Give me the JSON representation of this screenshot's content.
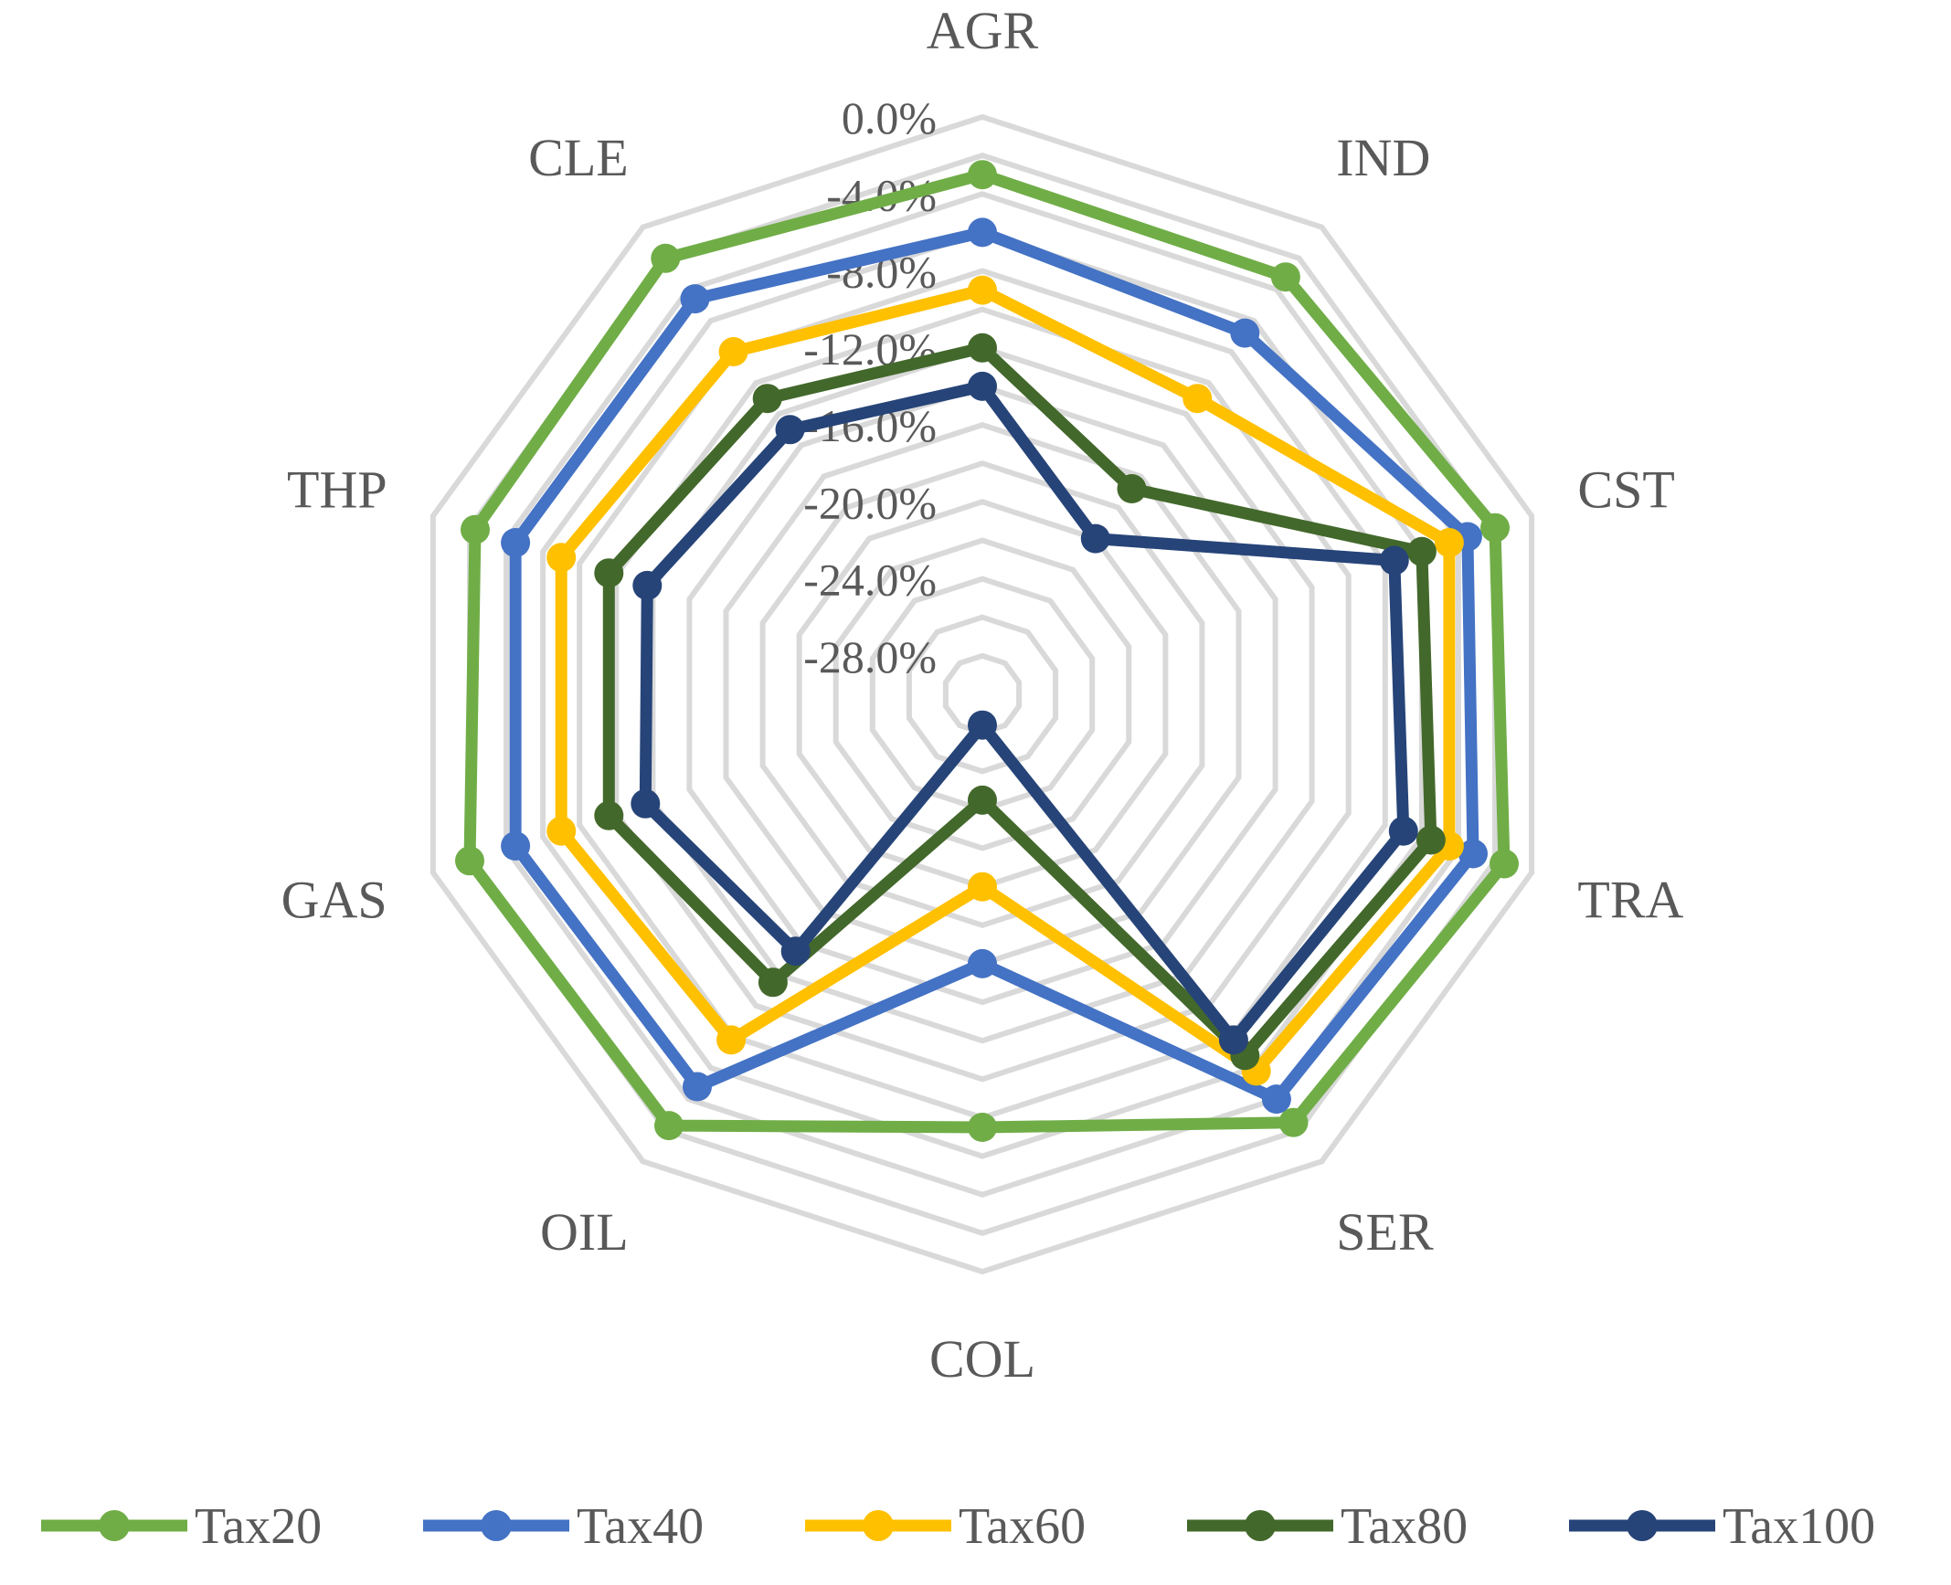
{
  "chart_data": {
    "type": "radar",
    "categories": [
      "AGR",
      "IND",
      "CST",
      "TRA",
      "SER",
      "COL",
      "OIL",
      "GAS",
      "THP",
      "CLE"
    ],
    "axis": {
      "min": -30,
      "max": 0,
      "ticks": [
        0,
        -4,
        -8,
        -12,
        -16,
        -20,
        -24,
        -28
      ],
      "tick_labels": [
        "0.0%",
        "-4.0%",
        "-8.0%",
        "-12.0%",
        "-16.0%",
        "-20.0%",
        "-24.0%",
        "-28.0%"
      ]
    },
    "grid": true,
    "legend": "bottom",
    "series": [
      {
        "name": "Tax20",
        "color": "#70AD47",
        "values": [
          -3.0,
          -3.2,
          -2.0,
          -1.5,
          -2.5,
          -7.5,
          -2.3,
          -2.0,
          -2.3,
          -2.0
        ]
      },
      {
        "name": "Tax40",
        "color": "#4472C4",
        "values": [
          -6.0,
          -6.8,
          -3.5,
          -3.2,
          -4.0,
          -16.0,
          -4.8,
          -4.5,
          -4.5,
          -4.6
        ]
      },
      {
        "name": "Tax60",
        "color": "#FFC000",
        "values": [
          -9.0,
          -11.0,
          -4.5,
          -4.5,
          -5.8,
          -20.0,
          -7.8,
          -7.0,
          -7.0,
          -8.0
        ]
      },
      {
        "name": "Tax80",
        "color": "#43682B",
        "values": [
          -12.0,
          -16.8,
          -6.0,
          -5.5,
          -6.8,
          -24.5,
          -11.5,
          -9.6,
          -9.6,
          -11.0
        ]
      },
      {
        "name": "Tax100",
        "color": "#264478",
        "values": [
          -14.0,
          -20.0,
          -7.5,
          -7.0,
          -7.8,
          -28.4,
          -13.5,
          -11.6,
          -11.7,
          -13.0
        ]
      }
    ]
  }
}
